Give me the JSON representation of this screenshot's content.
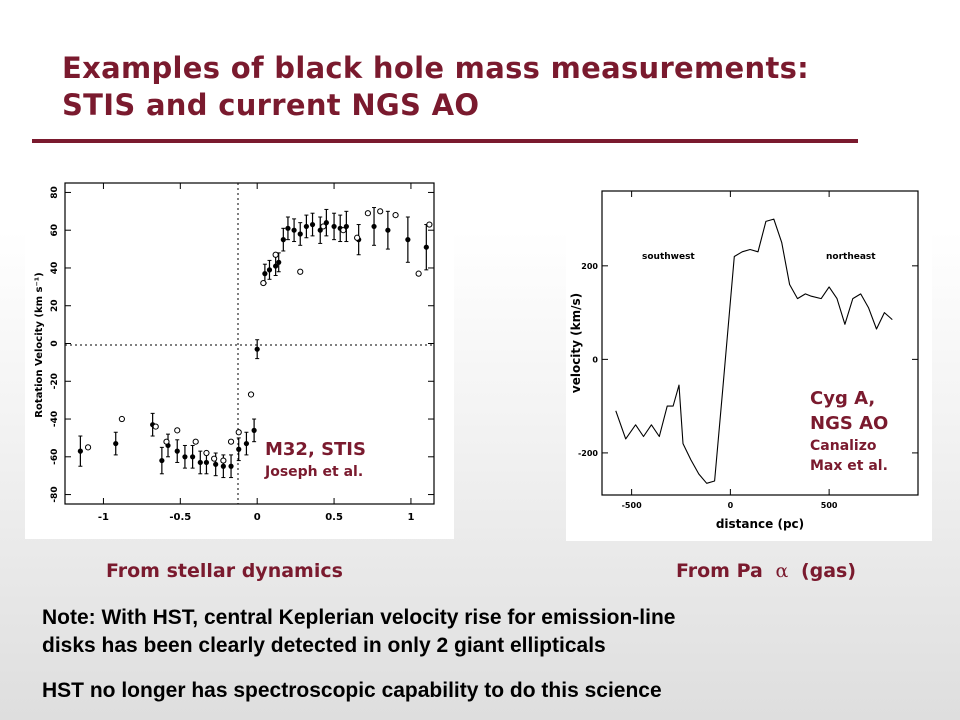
{
  "slide": {
    "title_line1": "Examples of black hole mass measurements:",
    "title_line2": "STIS and current NGS AO",
    "caption_left": "From stellar dynamics",
    "caption_right_prefix": "From Pa",
    "caption_right_symbol": "α",
    "caption_right_suffix": "(gas)",
    "note_line1": "Note: With HST, central Keplerian velocity rise for emission-line",
    "note_line2": "disks has been clearly detected in only 2 giant ellipticals",
    "note_line3": "HST no longer has spectroscopic capability to do this science",
    "accent_color": "#7a1a2e"
  },
  "insets": {
    "left_title": "M32, STIS",
    "left_credit": "Joseph et al.",
    "right_title1": "Cyg A,",
    "right_title2": "NGS AO",
    "right_credit1": "Canalizo",
    "right_credit2": "Max et al."
  },
  "chart_data": [
    {
      "type": "scatter",
      "title": "",
      "xlabel": "",
      "ylabel": "Rotation Velocity (km s⁻¹)",
      "xlim": [
        -1.25,
        1.15
      ],
      "ylim": [
        -85,
        85
      ],
      "xticks": [
        "-1",
        "-0.5",
        "0",
        "0.5",
        "1"
      ],
      "yticks": [
        "-80",
        "-60",
        "-40",
        "-20",
        "0",
        "20",
        "40",
        "60",
        "80"
      ],
      "grid": false,
      "series": [
        {
          "marker": "filled-circle-errorbar",
          "x": [
            -1.15,
            -0.92,
            -0.68,
            -0.62,
            -0.58,
            -0.52,
            -0.47,
            -0.42,
            -0.37,
            -0.33,
            -0.27,
            -0.22,
            -0.17,
            -0.12,
            -0.07,
            -0.02,
            0.0,
            0.05,
            0.08,
            0.12,
            0.14,
            0.17,
            0.2,
            0.24,
            0.28,
            0.32,
            0.36,
            0.41,
            0.45,
            0.5,
            0.54,
            0.58,
            0.66,
            0.76,
            0.85,
            0.98,
            1.1
          ],
          "y": [
            -57,
            -53,
            -43,
            -62,
            -54,
            -57,
            -60,
            -60,
            -63,
            -63,
            -64,
            -65,
            -65,
            -56,
            -53,
            -46,
            -3,
            37,
            39,
            41,
            43,
            55,
            61,
            60,
            58,
            62,
            63,
            60,
            64,
            62,
            61,
            62,
            55,
            62,
            60,
            55,
            51
          ],
          "err": [
            8,
            6,
            6,
            7,
            6,
            6,
            6,
            6,
            6,
            6,
            6,
            6,
            6,
            6,
            6,
            6,
            5,
            5,
            5,
            5,
            5,
            6,
            6,
            6,
            6,
            6,
            6,
            7,
            7,
            7,
            7,
            8,
            8,
            10,
            10,
            12,
            12
          ]
        },
        {
          "marker": "open-circle",
          "x": [
            -1.1,
            -0.88,
            -0.66,
            -0.59,
            -0.52,
            -0.4,
            -0.33,
            -0.28,
            -0.22,
            -0.17,
            -0.12,
            -0.04,
            0.04,
            0.12,
            0.28,
            0.43,
            0.56,
            0.65,
            0.72,
            0.8,
            0.9,
            1.05,
            1.12
          ],
          "y": [
            -55,
            -40,
            -44,
            -52,
            -46,
            -52,
            -58,
            -61,
            -62,
            -52,
            -47,
            -27,
            32,
            47,
            38,
            62,
            60,
            56,
            69,
            70,
            68,
            37,
            63
          ]
        }
      ],
      "annotations": [
        "M32, STIS",
        "Joseph et al."
      ]
    },
    {
      "type": "line",
      "title": "",
      "xlabel": "distance (pc)",
      "ylabel": "velocity (km/s)",
      "xlim": [
        -650,
        950
      ],
      "ylim": [
        -290,
        360
      ],
      "xticks": [
        "-500",
        "0",
        "500"
      ],
      "yticks": [
        "-200",
        "0",
        "200"
      ],
      "grid": false,
      "x": [
        -580,
        -530,
        -480,
        -440,
        -400,
        -360,
        -320,
        -290,
        -260,
        -240,
        -200,
        -160,
        -120,
        -80,
        -40,
        20,
        60,
        100,
        140,
        180,
        220,
        260,
        300,
        340,
        380,
        410,
        460,
        500,
        540,
        580,
        620,
        660,
        700,
        740,
        780,
        820
      ],
      "y": [
        -110,
        -170,
        -140,
        -165,
        -140,
        -165,
        -100,
        -100,
        -55,
        -180,
        -215,
        -245,
        -265,
        -260,
        -70,
        220,
        230,
        235,
        230,
        295,
        300,
        250,
        160,
        130,
        140,
        135,
        130,
        155,
        130,
        75,
        130,
        140,
        110,
        65,
        100,
        85
      ],
      "annotations": [
        "southwest",
        "northeast",
        "Cyg A,",
        "NGS AO",
        "Canalizo",
        "Max et al."
      ]
    }
  ]
}
